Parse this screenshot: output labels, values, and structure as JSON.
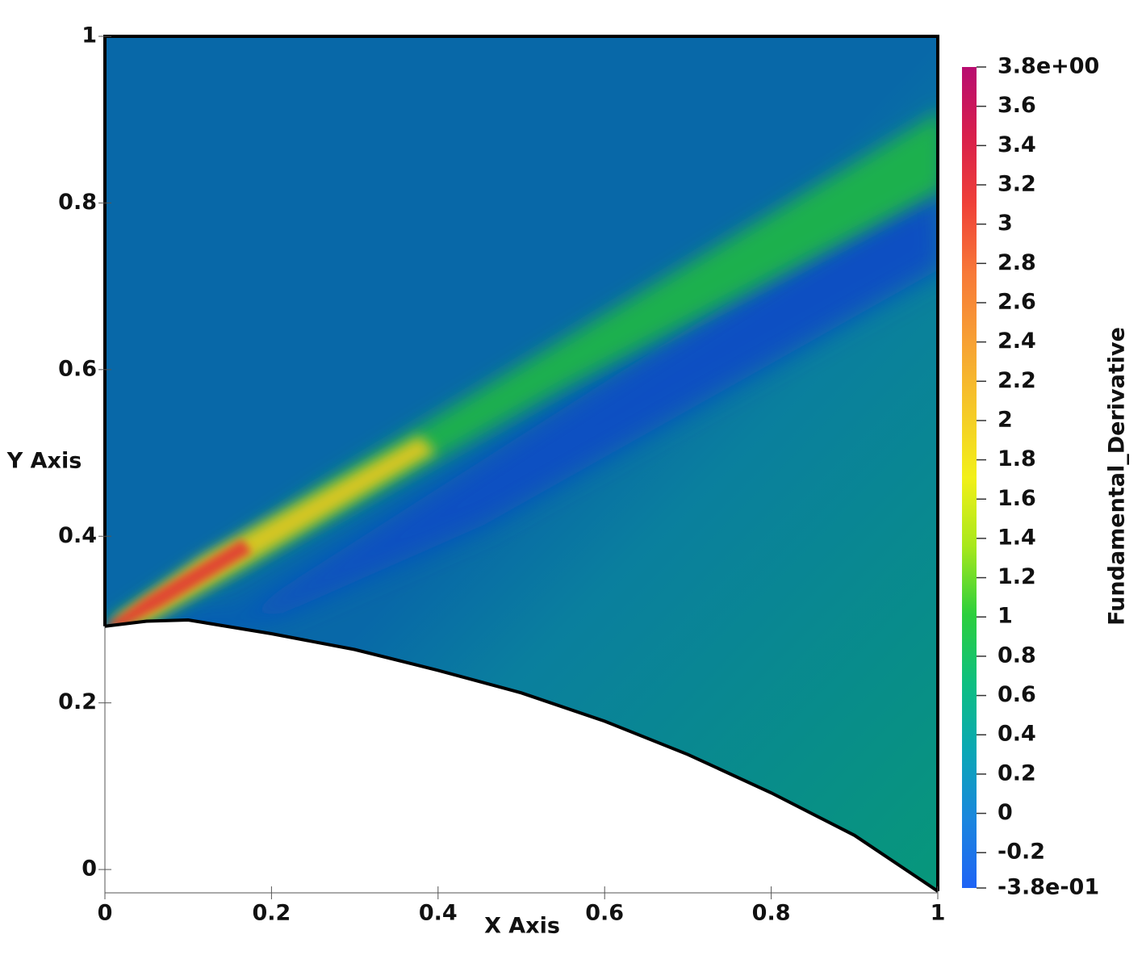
{
  "chart_data": {
    "type": "field",
    "xlabel": "X Axis",
    "ylabel": "Y Axis",
    "xlim": [
      0,
      1
    ],
    "ylim": [
      -0.028,
      1
    ],
    "xticks": [
      0,
      0.2,
      0.4,
      0.6,
      0.8,
      1
    ],
    "yticks": [
      0,
      0.2,
      0.4,
      0.6,
      0.8,
      1
    ],
    "lower_boundary": {
      "x": [
        0,
        0.05,
        0.1,
        0.2,
        0.3,
        0.4,
        0.5,
        0.6,
        0.7,
        0.8,
        0.9,
        1
      ],
      "y": [
        0.292,
        0.298,
        0.2995,
        0.283,
        0.264,
        0.239,
        0.212,
        0.178,
        0.138,
        0.092,
        0.041,
        -0.026
      ]
    },
    "colorbar": {
      "title": "Fundamental_Derivative",
      "lim": [
        -0.38,
        3.8
      ],
      "ticks": [
        {
          "value": 3.8,
          "label": "3.8e+00"
        },
        3.6,
        3.4,
        3.2,
        3,
        2.8,
        2.6,
        2.4,
        2.2,
        2,
        1.8,
        1.6,
        1.4,
        1.2,
        1,
        0.8,
        0.6,
        0.4,
        0.2,
        0,
        -0.2,
        {
          "value": -0.38,
          "label": "-3.8e-01"
        }
      ],
      "colors": [
        "#1f63f5",
        "#1a86de",
        "#0aa7b5",
        "#0dbf80",
        "#2ccf3c",
        "#a8e81c",
        "#f2f018",
        "#f5c828",
        "#f7a034",
        "#f77838",
        "#ef4038",
        "#d81f4c",
        "#b80c70"
      ]
    }
  }
}
